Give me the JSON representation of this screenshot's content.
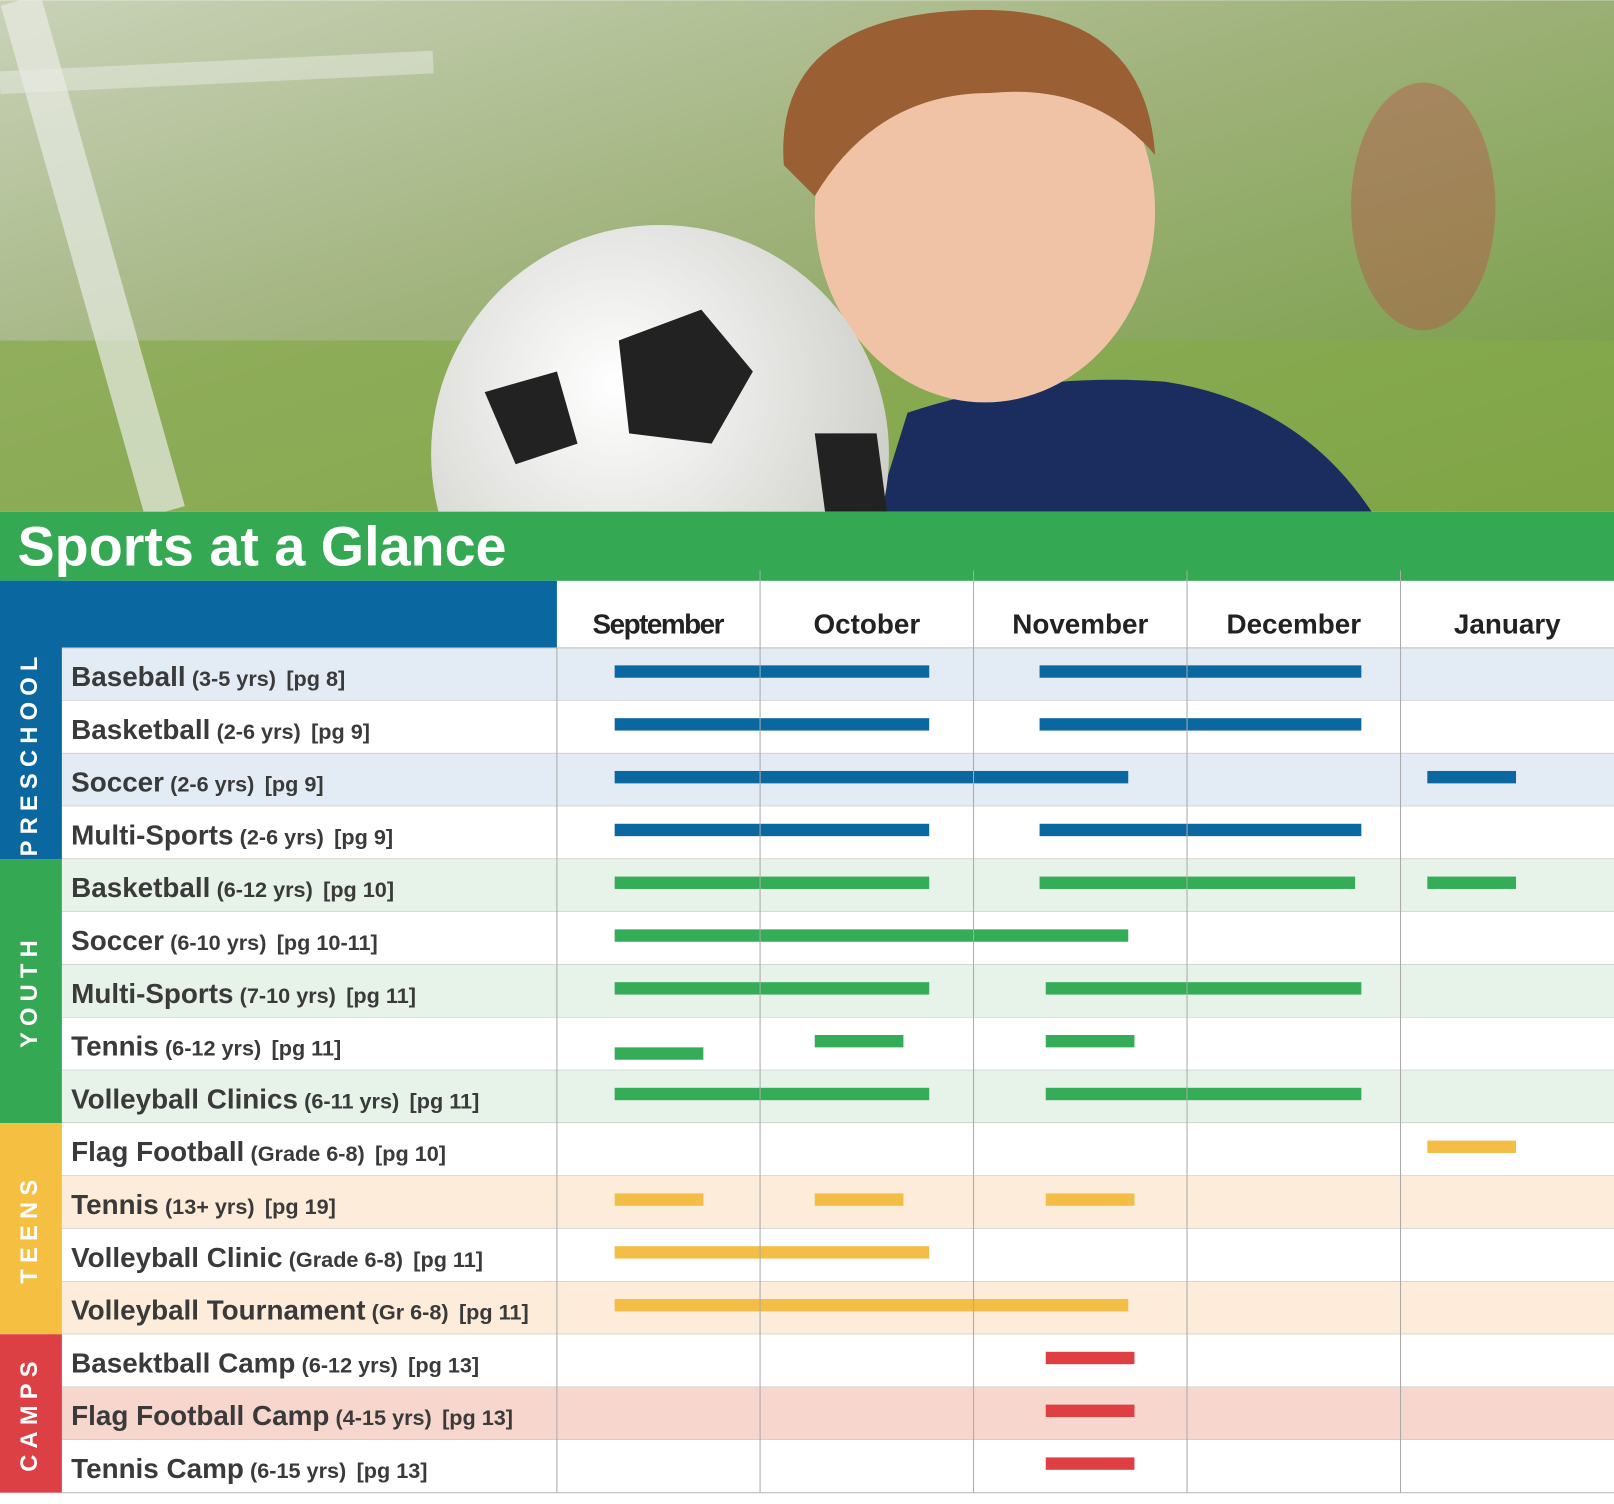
{
  "title": "Sports at a Glance",
  "months": [
    "September",
    "October",
    "November",
    "December",
    "January"
  ],
  "groups": [
    {
      "label": "PRESCHOOL",
      "rows": [
        {
          "name": "Baseball",
          "detail": "(3-5 yrs)",
          "page": "[pg 8]"
        },
        {
          "name": "Basketball",
          "detail": "(2-6 yrs)",
          "page": "[pg 9]"
        },
        {
          "name": "Soccer",
          "detail": "(2-6 yrs)",
          "page": "[pg 9]"
        },
        {
          "name": "Multi-Sports",
          "detail": "(2-6 yrs)",
          "page": "[pg 9]"
        }
      ]
    },
    {
      "label": "YOUTH",
      "rows": [
        {
          "name": "Basketball",
          "detail": "(6-12 yrs)",
          "page": "[pg 10]"
        },
        {
          "name": "Soccer",
          "detail": "(6-10 yrs)",
          "page": "[pg 10-11]"
        },
        {
          "name": "Multi-Sports",
          "detail": "(7-10 yrs)",
          "page": "[pg 11]"
        },
        {
          "name": "Tennis",
          "detail": "(6-12 yrs)",
          "page": "[pg 11]"
        },
        {
          "name": "Volleyball Clinics",
          "detail": "(6-11 yrs)",
          "page": "[pg 11]"
        }
      ]
    },
    {
      "label": "TEENS",
      "rows": [
        {
          "name": "Flag Football",
          "detail": "(Grade 6-8)",
          "page": "[pg 10]"
        },
        {
          "name": "Tennis",
          "detail": "(13+ yrs)",
          "page": "[pg 19]"
        },
        {
          "name": "Volleyball Clinic",
          "detail": "(Grade 6-8)",
          "page": "[pg 11]"
        },
        {
          "name": "Volleyball Tournament",
          "detail": "(Gr 6-8)",
          "page": "[pg 11]"
        }
      ]
    },
    {
      "label": "CAMPS",
      "rows": [
        {
          "name": "Basektball Camp",
          "detail": "(6-12 yrs)",
          "page": "[pg 13]"
        },
        {
          "name": "Flag Football Camp",
          "detail": "(4-15 yrs)",
          "page": "[pg 13]"
        },
        {
          "name": "Tennis Camp",
          "detail": "(6-15 yrs)",
          "page": "[pg 13]"
        }
      ]
    }
  ]
}
